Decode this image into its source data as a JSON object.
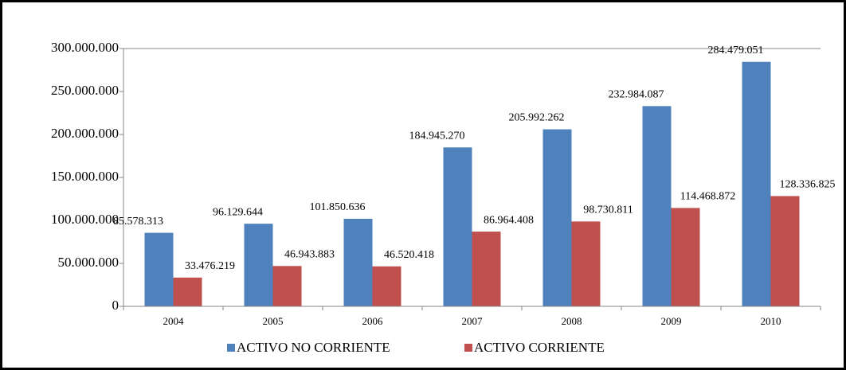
{
  "chart_data": {
    "type": "bar",
    "categories": [
      "2004",
      "2005",
      "2006",
      "2007",
      "2008",
      "2009",
      "2010"
    ],
    "series": [
      {
        "name": "ACTIVO NO CORRIENTE",
        "color": "#4f81bd",
        "values": [
          85578313,
          96129644,
          101850636,
          184945270,
          205992262,
          232984087,
          284479051
        ],
        "value_labels": [
          "85.578.313",
          "96.129.644",
          "101.850.636",
          "184.945.270",
          "205.992.262",
          "232.984.087",
          "284.479.051"
        ]
      },
      {
        "name": "ACTIVO CORRIENTE",
        "color": "#c0504d",
        "values": [
          33476219,
          46943883,
          46520418,
          86964408,
          98730811,
          114468872,
          128336825
        ],
        "value_labels": [
          "33.476.219",
          "46.943.883",
          "46.520.418",
          "86.964.408",
          "98.730.811",
          "114.468.872",
          "128.336.825"
        ]
      }
    ],
    "ylim": [
      0,
      300000000
    ],
    "yticks": [
      0,
      {
        "value": 50000000,
        "label": "50.000.000"
      },
      {
        "value": 100000000,
        "label": "100.000.000"
      },
      {
        "value": 150000000,
        "label": "150.000.000"
      },
      {
        "value": 200000000,
        "label": "200.000.000"
      },
      {
        "value": 250000000,
        "label": "250.000.000"
      },
      {
        "value": 300000000,
        "label": "300.000.000"
      }
    ],
    "grid": false,
    "legend": "bottom"
  }
}
